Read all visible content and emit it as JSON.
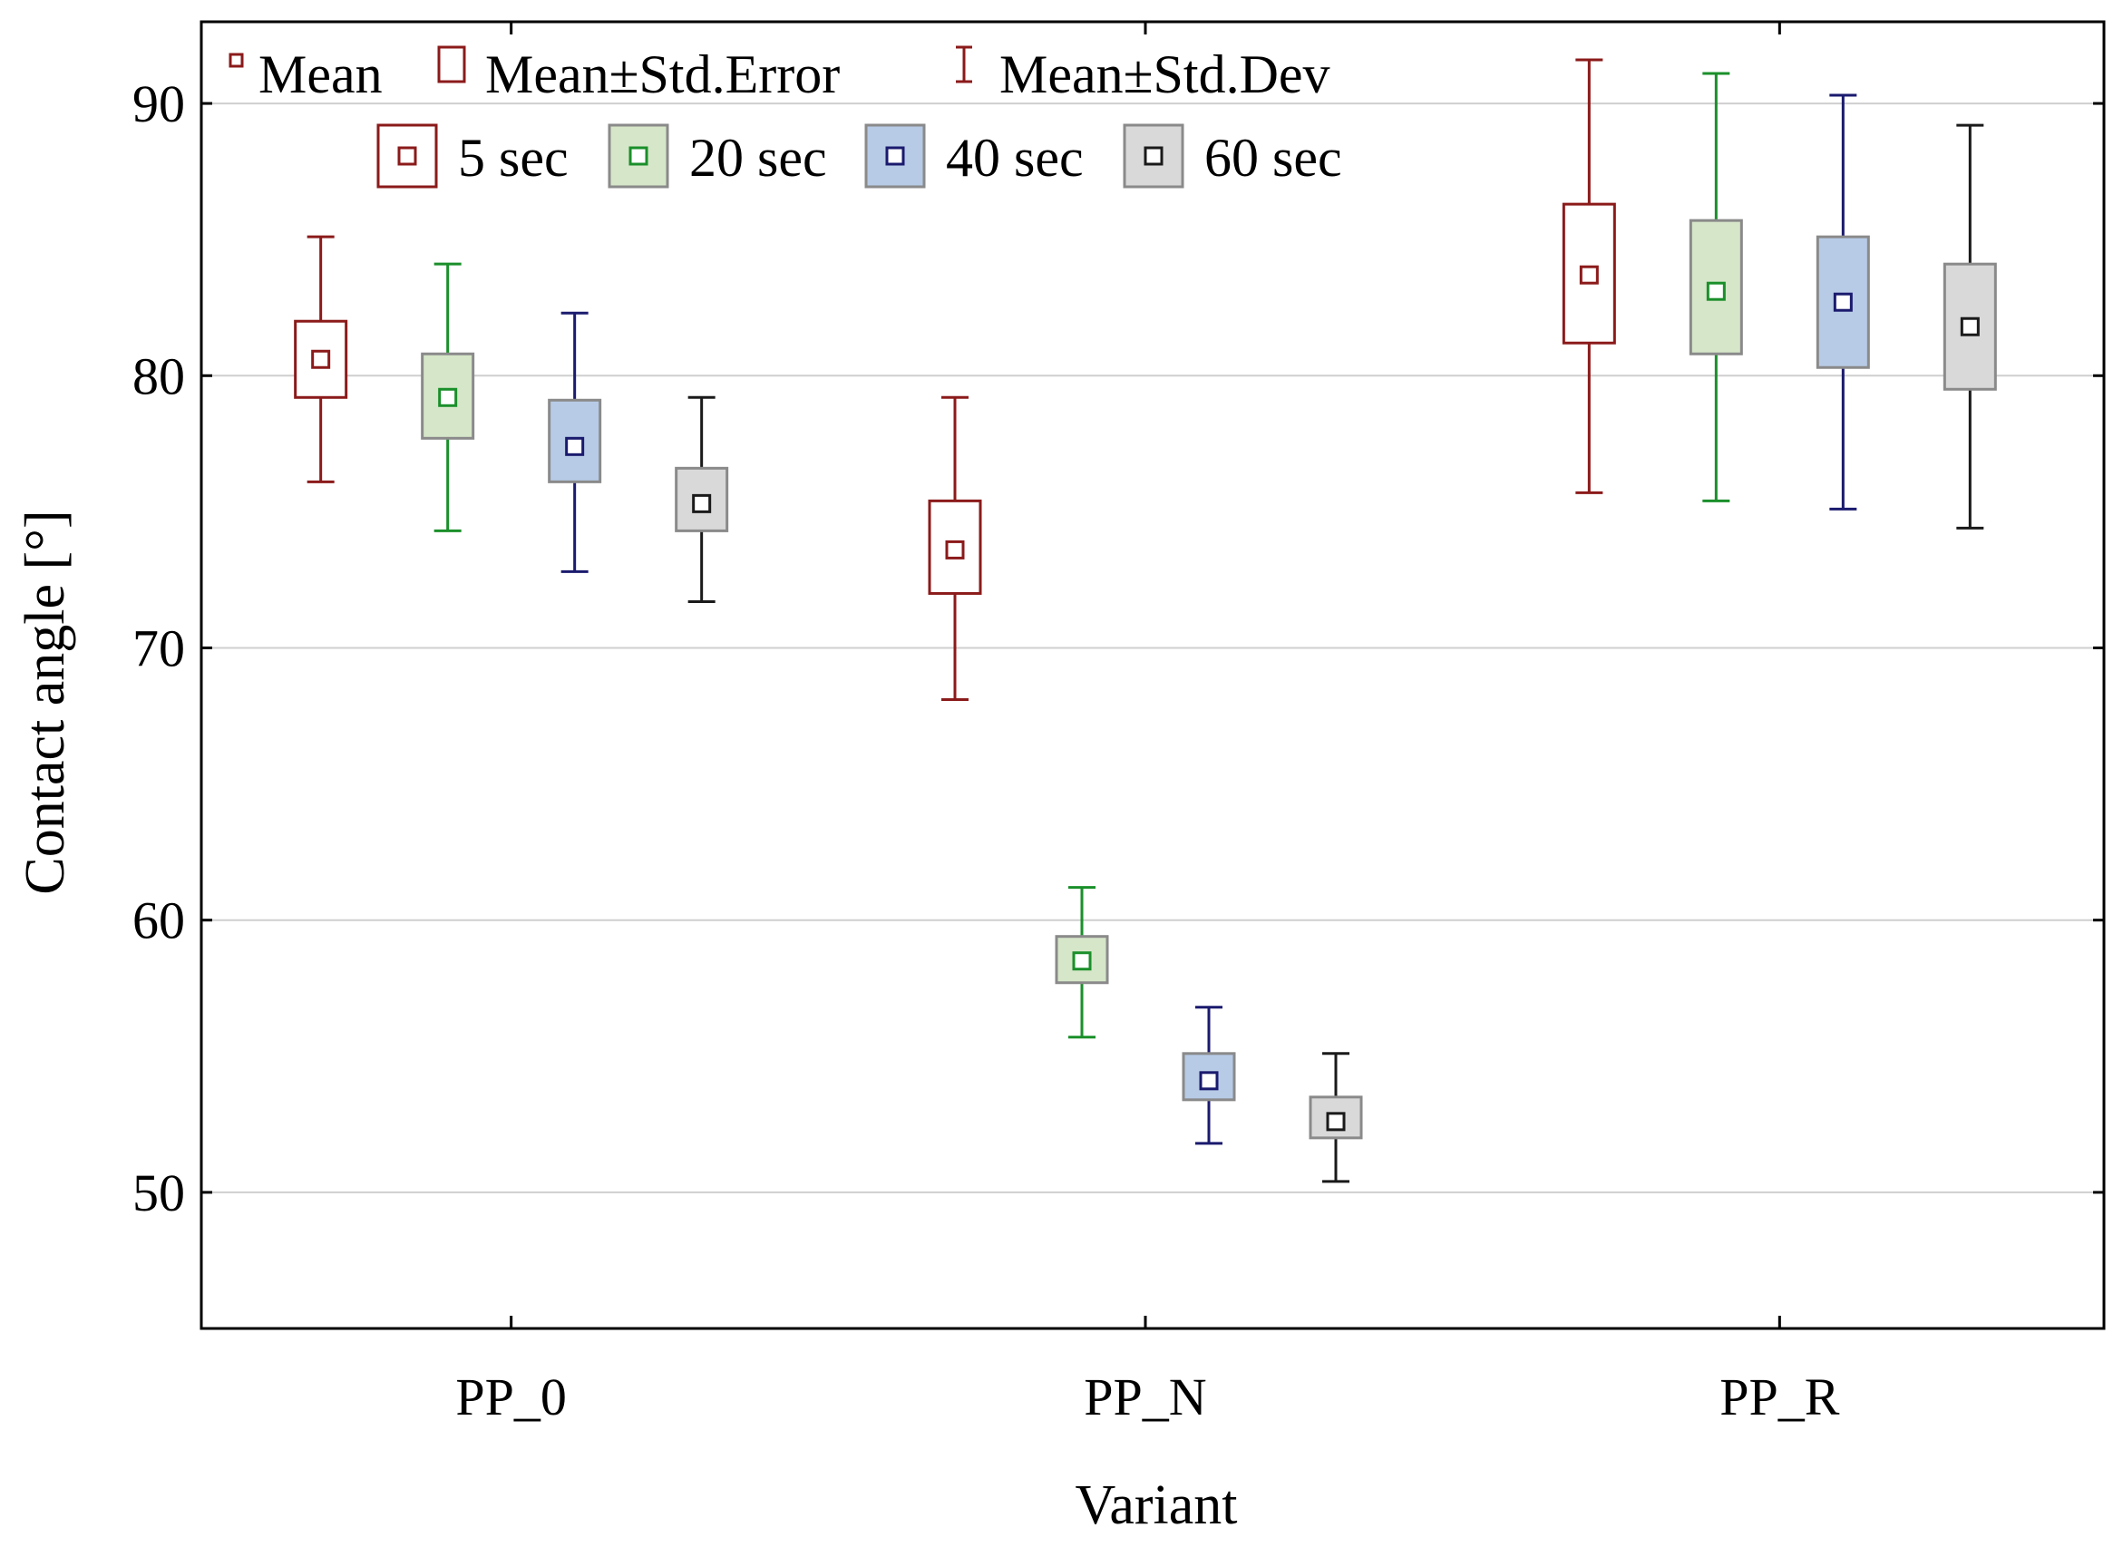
{
  "chart_data": {
    "type": "box",
    "title": "",
    "xlabel": "Variant",
    "ylabel": "Contact angle [°]",
    "categories": [
      "PP_0",
      "PP_N",
      "PP_R"
    ],
    "ylim": [
      45,
      93
    ],
    "yticks": [
      50,
      60,
      70,
      80,
      90
    ],
    "legend_stats": [
      {
        "label": "Mean",
        "icon": "small-square-icon"
      },
      {
        "label": "Mean±Std.Error",
        "icon": "box-icon"
      },
      {
        "label": "Mean±Std.Dev",
        "icon": "whisker-icon"
      }
    ],
    "series": [
      {
        "name": "5 sec",
        "color": "#8b1a1a",
        "fill": "#ffffff",
        "mean": [
          80.6,
          73.6,
          83.7
        ],
        "se_low": [
          79.2,
          72.0,
          81.2
        ],
        "se_high": [
          82.0,
          75.4,
          86.3
        ],
        "sd_low": [
          76.1,
          68.1,
          75.7
        ],
        "sd_high": [
          85.1,
          79.2,
          91.6
        ]
      },
      {
        "name": "20 sec",
        "color": "#1a8f2a",
        "fill": "#d6e6c8",
        "mean": [
          79.2,
          58.5,
          83.1
        ],
        "se_low": [
          77.7,
          57.7,
          80.8
        ],
        "se_high": [
          80.8,
          59.4,
          85.7
        ],
        "sd_low": [
          74.3,
          55.7,
          75.4
        ],
        "sd_high": [
          84.1,
          61.2,
          91.1
        ]
      },
      {
        "name": "40 sec",
        "color": "#1a1a6e",
        "fill": "#b7cbe6",
        "mean": [
          77.4,
          54.1,
          82.7
        ],
        "se_low": [
          76.1,
          53.4,
          80.3
        ],
        "se_high": [
          79.1,
          55.1,
          85.1
        ],
        "sd_low": [
          72.8,
          51.8,
          75.1
        ],
        "sd_high": [
          82.3,
          56.8,
          90.3
        ]
      },
      {
        "name": "60 sec",
        "color": "#1a1a1a",
        "fill": "#d9d9d9",
        "mean": [
          75.3,
          52.6,
          81.8
        ],
        "se_low": [
          74.3,
          52.0,
          79.5
        ],
        "se_high": [
          76.6,
          53.5,
          84.1
        ],
        "sd_low": [
          71.7,
          50.4,
          74.4
        ],
        "sd_high": [
          79.2,
          55.1,
          89.2
        ]
      }
    ]
  }
}
